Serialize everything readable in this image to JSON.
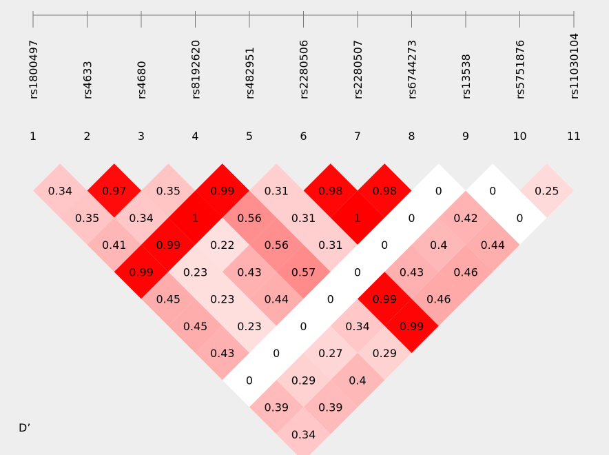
{
  "chart_data": {
    "type": "heatmap",
    "stat_label": "D’",
    "markers": [
      {
        "num": "1",
        "name": "rs1800497"
      },
      {
        "num": "2",
        "name": "rs4633"
      },
      {
        "num": "3",
        "name": "rs4680"
      },
      {
        "num": "4",
        "name": "rs8192620"
      },
      {
        "num": "5",
        "name": "rs482951"
      },
      {
        "num": "6",
        "name": "rs2280506"
      },
      {
        "num": "7",
        "name": "rs2280507"
      },
      {
        "num": "8",
        "name": "rs6744273"
      },
      {
        "num": "9",
        "name": "rs13538"
      },
      {
        "num": "10",
        "name": "rs5751876"
      },
      {
        "num": "11",
        "name": "rs11030104"
      }
    ],
    "cells": [
      {
        "i": 1,
        "j": 2,
        "label": "0.34",
        "value": 0.34
      },
      {
        "i": 2,
        "j": 3,
        "label": "0.97",
        "value": 0.97
      },
      {
        "i": 3,
        "j": 4,
        "label": "0.35",
        "value": 0.35
      },
      {
        "i": 4,
        "j": 5,
        "label": "0.99",
        "value": 0.99
      },
      {
        "i": 5,
        "j": 6,
        "label": "0.31",
        "value": 0.31
      },
      {
        "i": 6,
        "j": 7,
        "label": "0.98",
        "value": 0.98
      },
      {
        "i": 7,
        "j": 8,
        "label": "0.98",
        "value": 0.98
      },
      {
        "i": 8,
        "j": 9,
        "label": "0",
        "value": 0
      },
      {
        "i": 9,
        "j": 10,
        "label": "0",
        "value": 0
      },
      {
        "i": 10,
        "j": 11,
        "label": "0.25",
        "value": 0.25
      },
      {
        "i": 1,
        "j": 3,
        "label": "0.35",
        "value": 0.35
      },
      {
        "i": 2,
        "j": 4,
        "label": "0.34",
        "value": 0.34
      },
      {
        "i": 3,
        "j": 5,
        "label": "1",
        "value": 1.0
      },
      {
        "i": 4,
        "j": 6,
        "label": "0.56",
        "value": 0.56
      },
      {
        "i": 5,
        "j": 7,
        "label": "0.31",
        "value": 0.31
      },
      {
        "i": 6,
        "j": 8,
        "label": "1",
        "value": 1.0
      },
      {
        "i": 7,
        "j": 9,
        "label": "0",
        "value": 0
      },
      {
        "i": 8,
        "j": 10,
        "label": "0.42",
        "value": 0.42
      },
      {
        "i": 9,
        "j": 11,
        "label": "0",
        "value": 0
      },
      {
        "i": 1,
        "j": 4,
        "label": "0.41",
        "value": 0.41
      },
      {
        "i": 2,
        "j": 5,
        "label": "0.99",
        "value": 0.99
      },
      {
        "i": 3,
        "j": 6,
        "label": "0.22",
        "value": 0.22
      },
      {
        "i": 4,
        "j": 7,
        "label": "0.56",
        "value": 0.56
      },
      {
        "i": 5,
        "j": 8,
        "label": "0.31",
        "value": 0.31
      },
      {
        "i": 6,
        "j": 9,
        "label": "0",
        "value": 0
      },
      {
        "i": 7,
        "j": 10,
        "label": "0.4",
        "value": 0.4
      },
      {
        "i": 8,
        "j": 11,
        "label": "0.44",
        "value": 0.44
      },
      {
        "i": 1,
        "j": 5,
        "label": "0.99",
        "value": 0.99
      },
      {
        "i": 2,
        "j": 6,
        "label": "0.23",
        "value": 0.23
      },
      {
        "i": 3,
        "j": 7,
        "label": "0.43",
        "value": 0.43
      },
      {
        "i": 4,
        "j": 8,
        "label": "0.57",
        "value": 0.57
      },
      {
        "i": 5,
        "j": 9,
        "label": "0",
        "value": 0
      },
      {
        "i": 6,
        "j": 10,
        "label": "0.43",
        "value": 0.43
      },
      {
        "i": 7,
        "j": 11,
        "label": "0.46",
        "value": 0.46
      },
      {
        "i": 1,
        "j": 6,
        "label": "0.45",
        "value": 0.45
      },
      {
        "i": 2,
        "j": 7,
        "label": "0.23",
        "value": 0.23
      },
      {
        "i": 3,
        "j": 8,
        "label": "0.44",
        "value": 0.44
      },
      {
        "i": 4,
        "j": 9,
        "label": "0",
        "value": 0
      },
      {
        "i": 5,
        "j": 10,
        "label": "0.99",
        "value": 0.99
      },
      {
        "i": 6,
        "j": 11,
        "label": "0.46",
        "value": 0.46
      },
      {
        "i": 1,
        "j": 7,
        "label": "0.45",
        "value": 0.45
      },
      {
        "i": 2,
        "j": 8,
        "label": "0.23",
        "value": 0.23
      },
      {
        "i": 3,
        "j": 9,
        "label": "0",
        "value": 0
      },
      {
        "i": 4,
        "j": 10,
        "label": "0.34",
        "value": 0.34
      },
      {
        "i": 5,
        "j": 11,
        "label": "0.99",
        "value": 0.99
      },
      {
        "i": 1,
        "j": 8,
        "label": "0.43",
        "value": 0.43
      },
      {
        "i": 2,
        "j": 9,
        "label": "0",
        "value": 0
      },
      {
        "i": 3,
        "j": 10,
        "label": "0.27",
        "value": 0.27
      },
      {
        "i": 4,
        "j": 11,
        "label": "0.29",
        "value": 0.29
      },
      {
        "i": 1,
        "j": 9,
        "label": "0",
        "value": 0
      },
      {
        "i": 2,
        "j": 10,
        "label": "0.29",
        "value": 0.29
      },
      {
        "i": 3,
        "j": 11,
        "label": "0.4",
        "value": 0.4
      },
      {
        "i": 1,
        "j": 10,
        "label": "0.39",
        "value": 0.39
      },
      {
        "i": 2,
        "j": 11,
        "label": "0.39",
        "value": 0.39
      },
      {
        "i": 1,
        "j": 11,
        "label": "0.34",
        "value": 0.34
      }
    ],
    "colors": {
      "background": "#eeeeee",
      "high": "#ff0000",
      "low": "#ffffff",
      "axis": "#777777",
      "zero_cell": "#ffffff"
    }
  }
}
